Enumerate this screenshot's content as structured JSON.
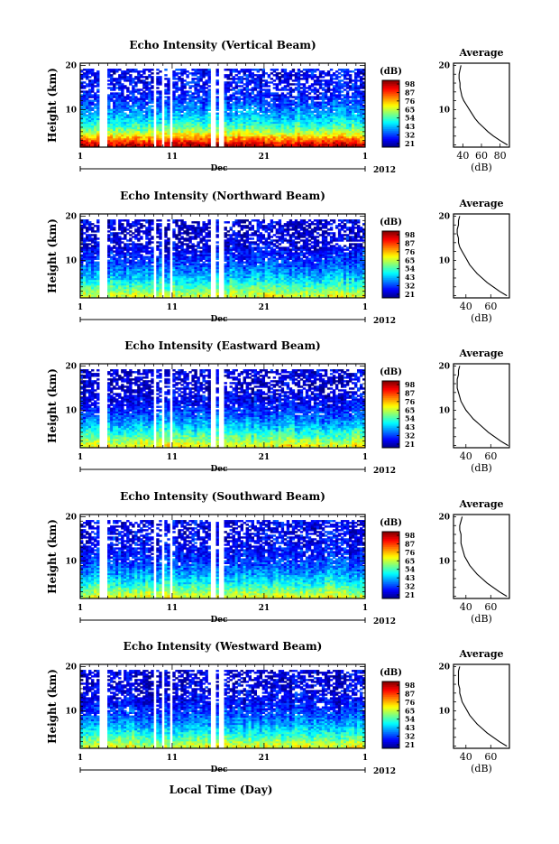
{
  "figure": {
    "x_axis_title": "Local Time (Day)",
    "month_label": "Dec",
    "year_label": "2012",
    "x_tick_labels": [
      "1",
      "11",
      "21",
      "1"
    ],
    "colorbar_unit": "(dB)",
    "colorbar_tick_labels": [
      "98",
      "87",
      "76",
      "65",
      "54",
      "43",
      "32",
      "21"
    ],
    "average_title": "Average",
    "average_xlabel": "(dB)"
  },
  "chart_data": [
    {
      "type": "heatmap",
      "title": "Echo Intensity (Vertical Beam)",
      "ylabel": "Height (km)",
      "xlim_day": [
        1,
        32
      ],
      "ylim_km": [
        1.5,
        20.5
      ],
      "y_tick_labels": [
        "10",
        "20"
      ],
      "colorbar": {
        "range_db": [
          21,
          98
        ],
        "unit": "(dB)"
      },
      "data_gaps_day": [
        [
          3.2,
          3.9
        ],
        [
          9.0,
          9.4
        ],
        [
          9.9,
          10.2
        ],
        [
          10.8,
          11.1
        ],
        [
          15.3,
          15.7
        ],
        [
          16.2,
          16.5
        ]
      ],
      "average_profile": {
        "title": "Average",
        "xlabel": "(dB)",
        "xlim": [
          30,
          90
        ],
        "x_tick_labels": [
          "40",
          "60",
          "80"
        ],
        "y_tick_labels": [
          "10",
          "20"
        ],
        "height_km": [
          2,
          3,
          4,
          5,
          6,
          7,
          8,
          9,
          10,
          11,
          12,
          13,
          14,
          15,
          16,
          17,
          18,
          19,
          20
        ],
        "intensity_db": [
          88,
          80,
          73,
          67,
          62,
          57,
          53,
          50,
          47,
          44,
          41,
          39,
          38,
          37,
          37,
          36,
          36,
          37,
          38
        ]
      }
    },
    {
      "type": "heatmap",
      "title": "Echo Intensity (Northward Beam)",
      "ylabel": "Height (km)",
      "xlim_day": [
        1,
        32
      ],
      "ylim_km": [
        1.5,
        20.5
      ],
      "y_tick_labels": [
        "10",
        "20"
      ],
      "colorbar": {
        "range_db": [
          21,
          98
        ],
        "unit": "(dB)"
      },
      "data_gaps_day": [
        [
          3.2,
          3.9
        ],
        [
          9.0,
          9.4
        ],
        [
          9.9,
          10.2
        ],
        [
          10.8,
          11.1
        ],
        [
          15.3,
          15.7
        ],
        [
          16.2,
          16.5
        ]
      ],
      "average_profile": {
        "title": "Average",
        "xlabel": "(dB)",
        "xlim": [
          30,
          75
        ],
        "x_tick_labels": [
          "40",
          "60"
        ],
        "y_tick_labels": [
          "10",
          "20"
        ],
        "height_km": [
          2,
          3,
          4,
          5,
          6,
          7,
          8,
          9,
          10,
          11,
          12,
          13,
          14,
          15,
          16,
          17,
          18,
          19,
          20
        ],
        "intensity_db": [
          73,
          67,
          62,
          57,
          53,
          49,
          46,
          43,
          41,
          39,
          37,
          35,
          34,
          34,
          33,
          33,
          34,
          34,
          35
        ]
      }
    },
    {
      "type": "heatmap",
      "title": "Echo Intensity (Eastward Beam)",
      "ylabel": "Height (km)",
      "xlim_day": [
        1,
        32
      ],
      "ylim_km": [
        1.5,
        20.5
      ],
      "y_tick_labels": [
        "10",
        "20"
      ],
      "colorbar": {
        "range_db": [
          21,
          98
        ],
        "unit": "(dB)"
      },
      "data_gaps_day": [
        [
          3.2,
          3.9
        ],
        [
          9.0,
          9.4
        ],
        [
          9.9,
          10.2
        ],
        [
          10.8,
          11.1
        ],
        [
          15.3,
          15.7
        ],
        [
          16.2,
          16.5
        ]
      ],
      "average_profile": {
        "title": "Average",
        "xlabel": "(dB)",
        "xlim": [
          30,
          75
        ],
        "x_tick_labels": [
          "40",
          "60"
        ],
        "y_tick_labels": [
          "10",
          "20"
        ],
        "height_km": [
          2,
          3,
          4,
          5,
          6,
          7,
          8,
          9,
          10,
          11,
          12,
          13,
          14,
          15,
          16,
          17,
          18,
          19,
          20
        ],
        "intensity_db": [
          74,
          68,
          63,
          58,
          54,
          50,
          46,
          43,
          40,
          38,
          36,
          35,
          34,
          33,
          33,
          33,
          34,
          34,
          35
        ]
      }
    },
    {
      "type": "heatmap",
      "title": "Echo Intensity (Southward Beam)",
      "ylabel": "Height (km)",
      "xlim_day": [
        1,
        32
      ],
      "ylim_km": [
        1.5,
        20.5
      ],
      "y_tick_labels": [
        "10",
        "20"
      ],
      "colorbar": {
        "range_db": [
          21,
          98
        ],
        "unit": "(dB)"
      },
      "data_gaps_day": [
        [
          3.2,
          3.9
        ],
        [
          9.0,
          9.4
        ],
        [
          9.9,
          10.2
        ],
        [
          10.8,
          11.1
        ],
        [
          15.3,
          15.7
        ],
        [
          16.2,
          16.5
        ]
      ],
      "average_profile": {
        "title": "Average",
        "xlabel": "(dB)",
        "xlim": [
          30,
          75
        ],
        "x_tick_labels": [
          "40",
          "60"
        ],
        "y_tick_labels": [
          "10",
          "20"
        ],
        "height_km": [
          2,
          3,
          4,
          5,
          6,
          7,
          8,
          9,
          10,
          11,
          12,
          13,
          14,
          15,
          16,
          17,
          18,
          19,
          20
        ],
        "intensity_db": [
          73,
          67,
          62,
          57,
          53,
          49,
          46,
          43,
          41,
          39,
          38,
          37,
          36,
          36,
          36,
          35,
          35,
          36,
          37
        ]
      }
    },
    {
      "type": "heatmap",
      "title": "Echo Intensity (Westward Beam)",
      "ylabel": "Height (km)",
      "xlim_day": [
        1,
        32
      ],
      "ylim_km": [
        1.5,
        20.5
      ],
      "y_tick_labels": [
        "10",
        "20"
      ],
      "colorbar": {
        "range_db": [
          21,
          98
        ],
        "unit": "(dB)"
      },
      "data_gaps_day": [
        [
          3.2,
          3.9
        ],
        [
          9.0,
          9.4
        ],
        [
          9.9,
          10.2
        ],
        [
          10.8,
          11.1
        ],
        [
          15.3,
          15.7
        ],
        [
          16.2,
          16.5
        ]
      ],
      "average_profile": {
        "title": "Average",
        "xlabel": "(dB)",
        "xlim": [
          30,
          75
        ],
        "x_tick_labels": [
          "40",
          "60"
        ],
        "y_tick_labels": [
          "10",
          "20"
        ],
        "height_km": [
          2,
          3,
          4,
          5,
          6,
          7,
          8,
          9,
          10,
          11,
          12,
          13,
          14,
          15,
          16,
          17,
          18,
          19,
          20
        ],
        "intensity_db": [
          73,
          67,
          62,
          57,
          53,
          49,
          46,
          43,
          41,
          39,
          37,
          36,
          35,
          35,
          34,
          34,
          34,
          34,
          35
        ]
      }
    }
  ]
}
